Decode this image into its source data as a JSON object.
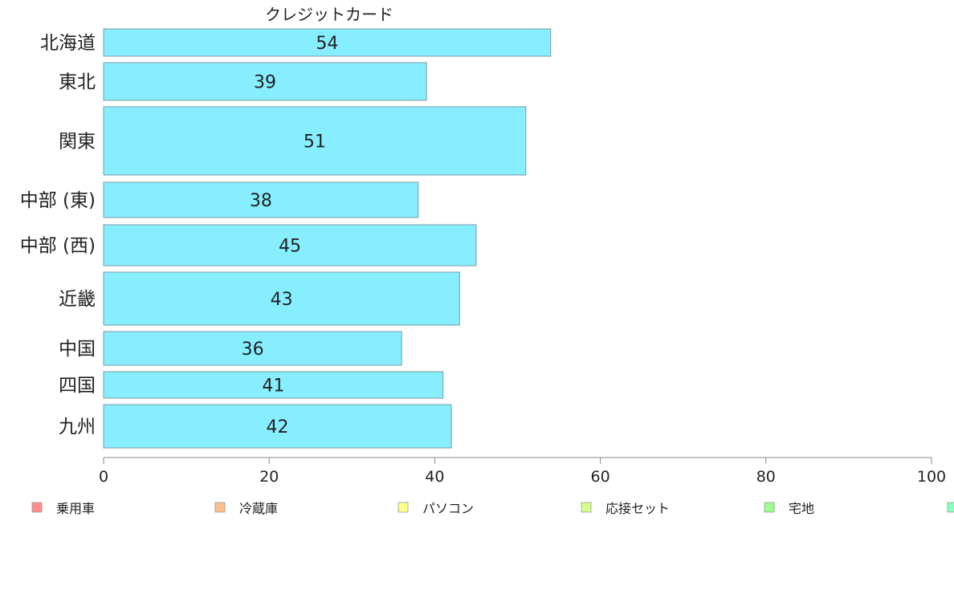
{
  "chart_data": {
    "type": "bar",
    "orientation": "horizontal",
    "title": "クレジットカード",
    "categories": [
      "北海道",
      "東北",
      "関東",
      "中部 (東)",
      "中部 (西)",
      "近畿",
      "中国",
      "四国",
      "九州"
    ],
    "values": [
      54,
      39,
      51,
      38,
      45,
      43,
      36,
      41,
      42
    ],
    "xlim": [
      0,
      100
    ],
    "x_ticks": [
      0,
      20,
      40,
      60,
      80,
      100
    ],
    "bar_color": "#87eeff",
    "bar_stroke": "#7a9aa6",
    "grid": false,
    "legend": {
      "placement": "bottom",
      "items": [
        {
          "label": "乗用車",
          "color": "#ff8c8c"
        },
        {
          "label": "冷蔵庫",
          "color": "#ffbd8c"
        },
        {
          "label": "パソコン",
          "color": "#ffff8c"
        },
        {
          "label": "応接セット",
          "color": "#d6ff8c"
        },
        {
          "label": "宅地",
          "color": "#9cff8c"
        },
        {
          "label": "",
          "color": "#8cffbd"
        }
      ]
    }
  }
}
